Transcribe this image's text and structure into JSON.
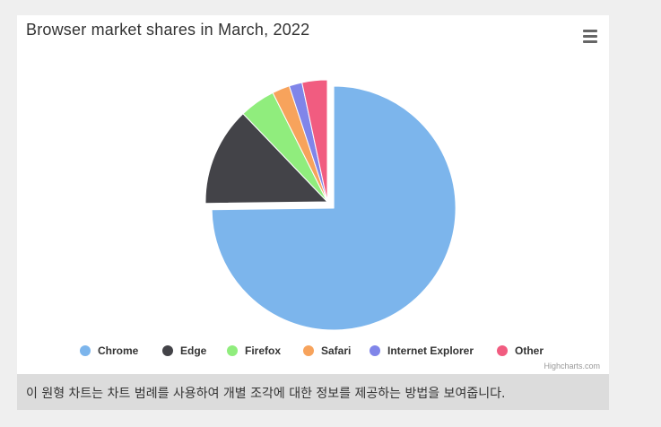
{
  "chart_data": {
    "type": "pie",
    "title": "Browser market shares in March, 2022",
    "categories": [
      "Chrome",
      "Edge",
      "Firefox",
      "Safari",
      "Internet Explorer",
      "Other"
    ],
    "values": [
      73.9,
      12.9,
      4.7,
      2.3,
      1.7,
      3.3
    ],
    "colors": [
      "#7cb5ec",
      "#434348",
      "#90ed7d",
      "#f7a35c",
      "#8085e9",
      "#f15c80"
    ],
    "sliced": [
      "Chrome"
    ],
    "legend_position": "bottom-center"
  },
  "menu": {
    "icon": "hamburger-menu-icon"
  },
  "credits": "Highcharts.com",
  "caption": "이 원형 차트는 차트 범례를 사용하여 개별 조각에 대한 정보를 제공하는 방법을 보여줍니다."
}
